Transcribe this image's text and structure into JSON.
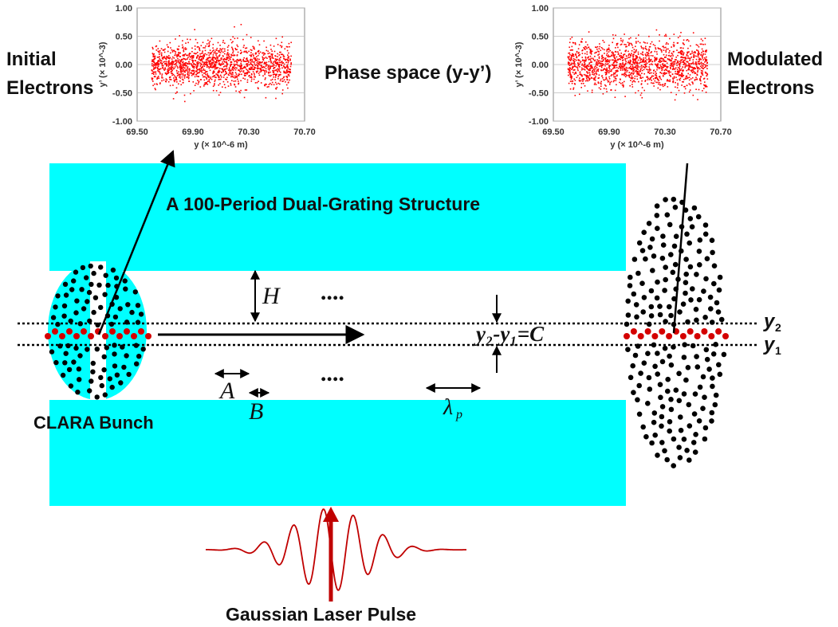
{
  "labels": {
    "initial": [
      "Initial",
      "Electrons"
    ],
    "modulated": [
      "Modulated",
      "Electrons"
    ],
    "phase_space": "Phase space (y-y’)",
    "structure_title": "A 100-Period Dual-Grating Structure",
    "clara": "CLARA Bunch",
    "laser": "Gaussian Laser Pulse",
    "H": "H",
    "A": "A",
    "B": "B",
    "lambda_p": "λ",
    "lambda_sub": "p",
    "gap": "y₂-y₁=C",
    "y2": "y",
    "y2_sub": "2",
    "y1": "y",
    "y1_sub": "1",
    "dots": "...."
  },
  "colors": {
    "grating": "#00ffff",
    "electrons": "#000000",
    "beam": "#d40000",
    "laser": "#c00000",
    "scatter": "#ff0000"
  },
  "chart_data": [
    {
      "type": "scatter",
      "name": "initial",
      "xlabel": "y (× 10^-6 m)",
      "ylabel": "y’ (× 10^-3)",
      "xlim": [
        69.5,
        70.7
      ],
      "ylim": [
        -1.0,
        1.0
      ],
      "xticks": [
        "69.50",
        "69.90",
        "70.30",
        "70.70"
      ],
      "yticks": [
        "1.00",
        "0.50",
        "0.00",
        "-0.50",
        "-1.00"
      ],
      "x_range": [
        69.6,
        70.6
      ],
      "y_spread": 0.5,
      "grid": true
    },
    {
      "type": "scatter",
      "name": "modulated",
      "xlabel": "y (× 10^-6 m)",
      "ylabel": "y’ (× 10^-3)",
      "xlim": [
        69.5,
        70.7
      ],
      "ylim": [
        -1.0,
        1.0
      ],
      "xticks": [
        "69.50",
        "69.90",
        "70.30",
        "70.70"
      ],
      "yticks": [
        "1.00",
        "0.50",
        "0.00",
        "-0.50",
        "-1.00"
      ],
      "x_range": [
        69.6,
        70.6
      ],
      "y_spread": 0.55,
      "grid": true
    }
  ]
}
